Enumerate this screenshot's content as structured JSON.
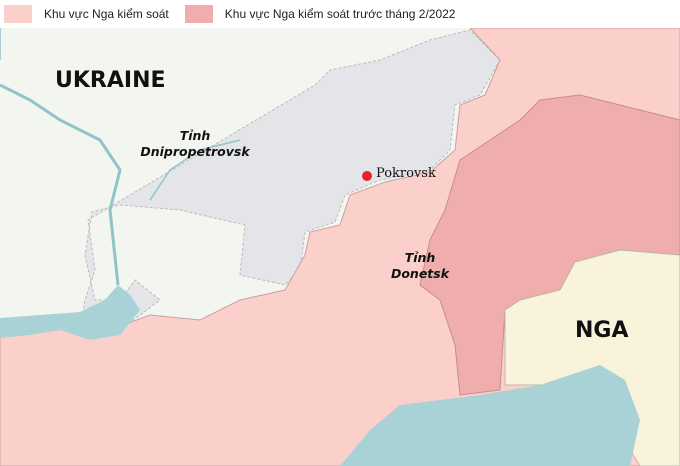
{
  "legend": [
    {
      "label": "Khu vực Nga kiểm soát",
      "color": "#fbd0cb"
    },
    {
      "label": "Khu vực Nga kiểm soát trước tháng 2/2022",
      "color": "#f0adad"
    }
  ],
  "labels": {
    "ukraine": "UKRAINE",
    "russia": "NGA",
    "dnipro_line1": "Tỉnh",
    "dnipro_line2": "Dnipropetrovsk",
    "donetsk_line1": "Tỉnh",
    "donetsk_line2": "Donetsk",
    "city": "Pokrovsk"
  },
  "colors": {
    "land": "#f3f5f1",
    "contested_grey": "#e3e5e8",
    "russia": "#f8f3da",
    "sea": "#a8d2d5",
    "city_marker": "#e8202a"
  }
}
